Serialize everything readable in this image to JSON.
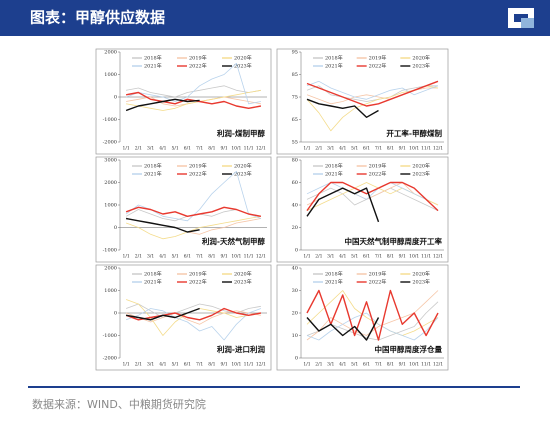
{
  "header": {
    "title": "图表：甲醇供应数据"
  },
  "footer": {
    "source": "数据来源：WIND、中粮期货研究院"
  },
  "chart_data": [
    {
      "type": "line",
      "title": "利润-煤制甲醇",
      "categories": [
        "1/1",
        "2/1",
        "3/1",
        "4/1",
        "5/1",
        "6/1",
        "7/1",
        "8/1",
        "9/1",
        "10/1",
        "11/1",
        "12/1"
      ],
      "ylim": [
        -2000,
        2000
      ],
      "yticks": [
        -2000,
        -1000,
        0,
        1000,
        2000
      ],
      "series": [
        {
          "name": "2018年",
          "color": "#c9c9c9",
          "values": [
            300,
            400,
            200,
            100,
            0,
            200,
            300,
            400,
            500,
            300,
            200,
            300
          ]
        },
        {
          "name": "2019年",
          "color": "#f6c6a8",
          "values": [
            -200,
            -100,
            0,
            -300,
            -400,
            -300,
            -200,
            -100,
            0,
            -100,
            -200,
            -300
          ]
        },
        {
          "name": "2020年",
          "color": "#f4dc8c",
          "values": [
            -300,
            -400,
            -500,
            -600,
            -500,
            -300,
            -200,
            -100,
            0,
            100,
            200,
            300
          ]
        },
        {
          "name": "2021年",
          "color": "#b9d3ec",
          "values": [
            0,
            200,
            100,
            0,
            -200,
            0,
            500,
            800,
            1000,
            1500,
            -300,
            -200
          ]
        },
        {
          "name": "2022年",
          "color": "#e8392f",
          "values": [
            100,
            200,
            -100,
            -200,
            -300,
            -100,
            -200,
            -300,
            -200,
            -400,
            -500,
            -400
          ]
        },
        {
          "name": "2023年",
          "color": "#111111",
          "values": [
            -600,
            -400,
            -300,
            -200,
            -100,
            -200,
            -150,
            null,
            null,
            null,
            null,
            null
          ]
        }
      ]
    },
    {
      "type": "line",
      "title": "开工率-甲醇煤制",
      "categories": [
        "1/1",
        "2/1",
        "3/1",
        "4/1",
        "5/1",
        "6/1",
        "7/1",
        "8/1",
        "9/1",
        "10/1",
        "11/1",
        "12/1"
      ],
      "ylim": [
        55,
        95
      ],
      "yticks": [
        55,
        65,
        75,
        85,
        95
      ],
      "series": [
        {
          "name": "2018年",
          "color": "#c9c9c9",
          "values": [
            78,
            80,
            76,
            75,
            74,
            73,
            74,
            75,
            78,
            79,
            80,
            80
          ]
        },
        {
          "name": "2019年",
          "color": "#f6c6a8",
          "values": [
            76,
            74,
            72,
            73,
            75,
            76,
            75,
            74,
            76,
            78,
            79,
            79
          ]
        },
        {
          "name": "2020年",
          "color": "#f4dc8c",
          "values": [
            74,
            68,
            60,
            66,
            70,
            72,
            74,
            75,
            77,
            78,
            80,
            79
          ]
        },
        {
          "name": "2021年",
          "color": "#b9d3ec",
          "values": [
            80,
            82,
            79,
            77,
            75,
            74,
            76,
            78,
            79,
            76,
            78,
            80
          ]
        },
        {
          "name": "2022年",
          "color": "#e8392f",
          "values": [
            81,
            79,
            77,
            75,
            73,
            71,
            72,
            74,
            76,
            78,
            80,
            82
          ]
        },
        {
          "name": "2023年",
          "color": "#111111",
          "values": [
            74,
            72,
            71,
            70,
            71,
            66,
            69,
            null,
            null,
            null,
            null,
            null
          ]
        }
      ]
    },
    {
      "type": "line",
      "title": "利润-天然气制甲醇",
      "categories": [
        "1/1",
        "2/1",
        "3/1",
        "4/1",
        "5/1",
        "6/1",
        "7/1",
        "8/1",
        "9/1",
        "10/1",
        "11/1",
        "12/1"
      ],
      "ylim": [
        -1000,
        3000
      ],
      "yticks": [
        -1000,
        0,
        1000,
        2000,
        3000
      ],
      "series": [
        {
          "name": "2018年",
          "color": "#c9c9c9",
          "values": [
            500,
            800,
            600,
            400,
            300,
            500,
            600,
            500,
            700,
            800,
            600,
            500
          ]
        },
        {
          "name": "2019年",
          "color": "#f6c6a8",
          "values": [
            400,
            300,
            200,
            100,
            0,
            -200,
            -300,
            -100,
            0,
            200,
            300,
            400
          ]
        },
        {
          "name": "2020年",
          "color": "#f4dc8c",
          "values": [
            200,
            0,
            -300,
            -500,
            -400,
            -200,
            0,
            100,
            200,
            300,
            400,
            500
          ]
        },
        {
          "name": "2021年",
          "color": "#b9d3ec",
          "values": [
            600,
            1000,
            800,
            500,
            400,
            300,
            800,
            1500,
            2000,
            2500,
            600,
            400
          ]
        },
        {
          "name": "2022年",
          "color": "#e8392f",
          "values": [
            700,
            900,
            800,
            600,
            700,
            500,
            600,
            700,
            900,
            800,
            600,
            500
          ]
        },
        {
          "name": "2023年",
          "color": "#111111",
          "values": [
            400,
            300,
            200,
            100,
            0,
            -200,
            -100,
            null,
            null,
            null,
            null,
            null
          ]
        }
      ]
    },
    {
      "type": "line",
      "title": "中国天然气制甲醇周度开工率",
      "categories": [
        "1/1",
        "2/1",
        "3/1",
        "4/1",
        "5/1",
        "6/1",
        "7/1",
        "8/1",
        "9/1",
        "10/1",
        "11/1",
        "12/1"
      ],
      "ylim": [
        0,
        80
      ],
      "yticks": [
        0,
        20,
        40,
        60,
        80
      ],
      "series": [
        {
          "name": "2018年",
          "color": "#c9c9c9",
          "values": [
            45,
            50,
            55,
            50,
            40,
            45,
            50,
            55,
            50,
            45,
            40,
            35
          ]
        },
        {
          "name": "2019年",
          "color": "#f6c6a8",
          "values": [
            40,
            45,
            50,
            55,
            50,
            45,
            50,
            55,
            60,
            50,
            45,
            40
          ]
        },
        {
          "name": "2020年",
          "color": "#f4dc8c",
          "values": [
            35,
            40,
            45,
            50,
            55,
            60,
            55,
            50,
            55,
            50,
            45,
            40
          ]
        },
        {
          "name": "2021年",
          "color": "#b9d3ec",
          "values": [
            50,
            55,
            60,
            55,
            50,
            45,
            55,
            60,
            55,
            50,
            45,
            35
          ]
        },
        {
          "name": "2022年",
          "color": "#e8392f",
          "values": [
            35,
            50,
            60,
            60,
            55,
            50,
            55,
            60,
            60,
            55,
            45,
            35
          ]
        },
        {
          "name": "2023年",
          "color": "#111111",
          "values": [
            30,
            45,
            50,
            55,
            50,
            55,
            25,
            null,
            null,
            null,
            null,
            null
          ]
        }
      ]
    },
    {
      "type": "line",
      "title": "利润-进口利润",
      "categories": [
        "1/1",
        "2/1",
        "3/1",
        "4/1",
        "5/1",
        "6/1",
        "7/1",
        "8/1",
        "9/1",
        "10/1",
        "11/1",
        "12/1"
      ],
      "ylim": [
        -2000,
        2000
      ],
      "yticks": [
        -2000,
        -1000,
        0,
        1000,
        2000
      ],
      "series": [
        {
          "name": "2018年",
          "color": "#c9c9c9",
          "values": [
            200,
            400,
            100,
            -200,
            0,
            200,
            400,
            300,
            100,
            0,
            200,
            300
          ]
        },
        {
          "name": "2019年",
          "color": "#f6c6a8",
          "values": [
            0,
            -200,
            -400,
            -200,
            0,
            -300,
            -500,
            -200,
            0,
            100,
            0,
            -100
          ]
        },
        {
          "name": "2020年",
          "color": "#f4dc8c",
          "values": [
            600,
            400,
            -200,
            -1000,
            -400,
            0,
            200,
            100,
            0,
            -200,
            -100,
            0
          ]
        },
        {
          "name": "2021年",
          "color": "#b9d3ec",
          "values": [
            -300,
            -100,
            200,
            100,
            -200,
            -400,
            -800,
            -600,
            -1200,
            -500,
            0,
            200
          ]
        },
        {
          "name": "2022年",
          "color": "#e8392f",
          "values": [
            -100,
            -300,
            -200,
            -100,
            0,
            -200,
            -300,
            -100,
            200,
            0,
            -100,
            0
          ]
        },
        {
          "name": "2023年",
          "color": "#111111",
          "values": [
            -100,
            -200,
            -300,
            -100,
            -200,
            0,
            200,
            null,
            null,
            null,
            null,
            null
          ]
        }
      ]
    },
    {
      "type": "line",
      "title": "中国甲醇周度浮仓量",
      "categories": [
        "1/1",
        "2/1",
        "3/1",
        "4/1",
        "5/1",
        "6/1",
        "7/1",
        "8/1",
        "9/1",
        "10/1",
        "11/1",
        "12/1"
      ],
      "ylim": [
        0,
        40
      ],
      "yticks": [
        0,
        10,
        20,
        30,
        40
      ],
      "series": [
        {
          "name": "2018年",
          "color": "#c9c9c9",
          "values": [
            10,
            12,
            15,
            13,
            11,
            9,
            8,
            10,
            12,
            14,
            20,
            25
          ]
        },
        {
          "name": "2019年",
          "color": "#f6c6a8",
          "values": [
            8,
            12,
            18,
            15,
            12,
            10,
            14,
            16,
            18,
            20,
            25,
            30
          ]
        },
        {
          "name": "2020年",
          "color": "#f4dc8c",
          "values": [
            15,
            20,
            25,
            30,
            22,
            18,
            15,
            12,
            10,
            12,
            15,
            18
          ]
        },
        {
          "name": "2021年",
          "color": "#b9d3ec",
          "values": [
            10,
            8,
            12,
            15,
            18,
            20,
            15,
            12,
            10,
            8,
            12,
            18
          ]
        },
        {
          "name": "2022年",
          "color": "#e8392f",
          "values": [
            20,
            30,
            15,
            28,
            10,
            25,
            8,
            30,
            15,
            20,
            10,
            20
          ]
        },
        {
          "name": "2023年",
          "color": "#111111",
          "values": [
            18,
            12,
            15,
            10,
            14,
            8,
            18,
            null,
            null,
            null,
            null,
            null
          ]
        }
      ]
    }
  ]
}
